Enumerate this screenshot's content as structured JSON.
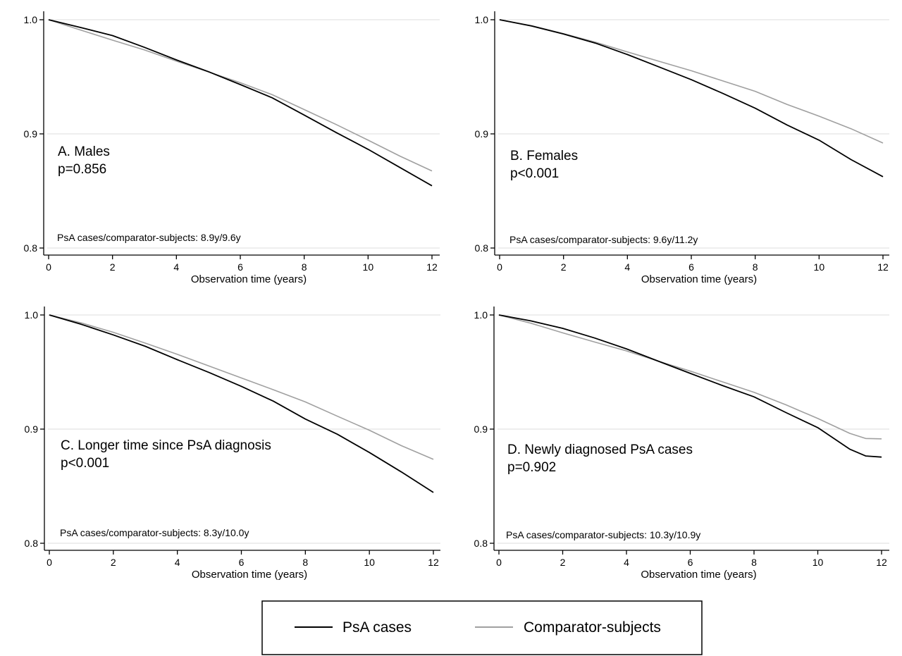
{
  "colors": {
    "psa": "#000000",
    "comparator": "#a0a0a0"
  },
  "legend": {
    "items": [
      {
        "label": "PsA cases"
      },
      {
        "label": "Comparator-subjects"
      }
    ]
  },
  "chart_data": [
    {
      "type": "line",
      "annotation": {
        "title": "A. Males",
        "pvalue": "p=0.856",
        "note": "PsA cases/comparator-subjects: 8.9y/9.6y"
      },
      "xlabel": "Observation time (years)",
      "ylabel": "",
      "xlim": [
        0,
        12
      ],
      "ylim": [
        0.8,
        1.0
      ],
      "xticks": [
        0,
        2,
        4,
        6,
        8,
        10,
        12
      ],
      "yticks": [
        0.8,
        0.9,
        1.0
      ],
      "ytick_labels": [
        "0.8",
        "0.9",
        "1.0"
      ],
      "grid": true,
      "x": [
        0,
        1,
        2,
        3,
        4,
        5,
        6,
        7,
        8,
        9,
        10,
        11,
        12
      ],
      "series": [
        {
          "name": "PsA cases",
          "values": [
            1.0,
            0.9932,
            0.9861,
            0.9758,
            0.9648,
            0.9545,
            0.9432,
            0.9316,
            0.9165,
            0.9012,
            0.8865,
            0.8705,
            0.8545
          ]
        },
        {
          "name": "Comparator-subjects",
          "values": [
            1.0,
            0.991,
            0.9821,
            0.9735,
            0.9637,
            0.9543,
            0.9448,
            0.9343,
            0.9213,
            0.9082,
            0.8945,
            0.8805,
            0.8675
          ]
        }
      ]
    },
    {
      "type": "line",
      "annotation": {
        "title": "B. Females",
        "pvalue": "p<0.001",
        "note": "PsA cases/comparator-subjects: 9.6y/11.2y"
      },
      "xlabel": "Observation time (years)",
      "ylabel": "",
      "xlim": [
        0,
        12
      ],
      "ylim": [
        0.8,
        1.0
      ],
      "xticks": [
        0,
        2,
        4,
        6,
        8,
        10,
        12
      ],
      "yticks": [
        0.8,
        0.9,
        1.0
      ],
      "ytick_labels": [
        "0.8",
        "0.9",
        "1.0"
      ],
      "grid": true,
      "x": [
        0,
        1,
        2,
        3,
        4,
        5,
        6,
        7,
        8,
        9,
        10,
        11,
        12
      ],
      "series": [
        {
          "name": "PsA cases",
          "values": [
            1.0,
            0.9945,
            0.9875,
            0.9795,
            0.9695,
            0.9585,
            0.9475,
            0.9353,
            0.9225,
            0.9078,
            0.8945,
            0.8775,
            0.8625
          ]
        },
        {
          "name": "Comparator-subjects",
          "values": [
            1.0,
            0.9948,
            0.9878,
            0.9803,
            0.9718,
            0.9635,
            0.9553,
            0.9463,
            0.9373,
            0.9258,
            0.9155,
            0.9045,
            0.892
          ]
        }
      ]
    },
    {
      "type": "line",
      "annotation": {
        "title": "C. Longer time since PsA diagnosis",
        "pvalue": "p<0.001",
        "note": "PsA cases/comparator-subjects: 8.3y/10.0y"
      },
      "xlabel": "Observation time (years)",
      "ylabel": "",
      "xlim": [
        0,
        12
      ],
      "ylim": [
        0.8,
        1.0
      ],
      "xticks": [
        0,
        2,
        4,
        6,
        8,
        10,
        12
      ],
      "yticks": [
        0.8,
        0.9,
        1.0
      ],
      "ytick_labels": [
        "0.8",
        "0.9",
        "1.0"
      ],
      "grid": true,
      "x": [
        0,
        1,
        2,
        3,
        4,
        5,
        6,
        7,
        8,
        9,
        10,
        11,
        12
      ],
      "series": [
        {
          "name": "PsA cases",
          "values": [
            1.0,
            0.9918,
            0.9825,
            0.9725,
            0.9608,
            0.9495,
            0.9375,
            0.9245,
            0.9088,
            0.8955,
            0.8795,
            0.8625,
            0.8445
          ]
        },
        {
          "name": "Comparator-subjects",
          "values": [
            1.0,
            0.993,
            0.9848,
            0.9753,
            0.9655,
            0.9552,
            0.9448,
            0.9345,
            0.9238,
            0.9113,
            0.899,
            0.8855,
            0.8735
          ]
        }
      ]
    },
    {
      "type": "line",
      "annotation": {
        "title": "D. Newly diagnosed PsA cases",
        "pvalue": "p=0.902",
        "note": "PsA cases/comparator-subjects: 10.3y/10.9y"
      },
      "xlabel": "Observation time (years)",
      "ylabel": "",
      "xlim": [
        0,
        12
      ],
      "ylim": [
        0.8,
        1.0
      ],
      "xticks": [
        0,
        2,
        4,
        6,
        8,
        10,
        12
      ],
      "yticks": [
        0.8,
        0.9,
        1.0
      ],
      "ytick_labels": [
        "0.8",
        "0.9",
        "1.0"
      ],
      "grid": true,
      "x": [
        0,
        1,
        2,
        3,
        4,
        5,
        6,
        7,
        8,
        9,
        10,
        11,
        11.5,
        12
      ],
      "series": [
        {
          "name": "PsA cases",
          "values": [
            1.0,
            0.9948,
            0.9883,
            0.9798,
            0.9703,
            0.9595,
            0.9488,
            0.9383,
            0.9283,
            0.9145,
            0.9013,
            0.8825,
            0.8765,
            0.8755
          ]
        },
        {
          "name": "Comparator-subjects",
          "values": [
            1.0,
            0.9928,
            0.9843,
            0.9763,
            0.9685,
            0.9595,
            0.9508,
            0.9415,
            0.9323,
            0.9213,
            0.9093,
            0.8963,
            0.8918,
            0.8915
          ]
        }
      ]
    }
  ]
}
